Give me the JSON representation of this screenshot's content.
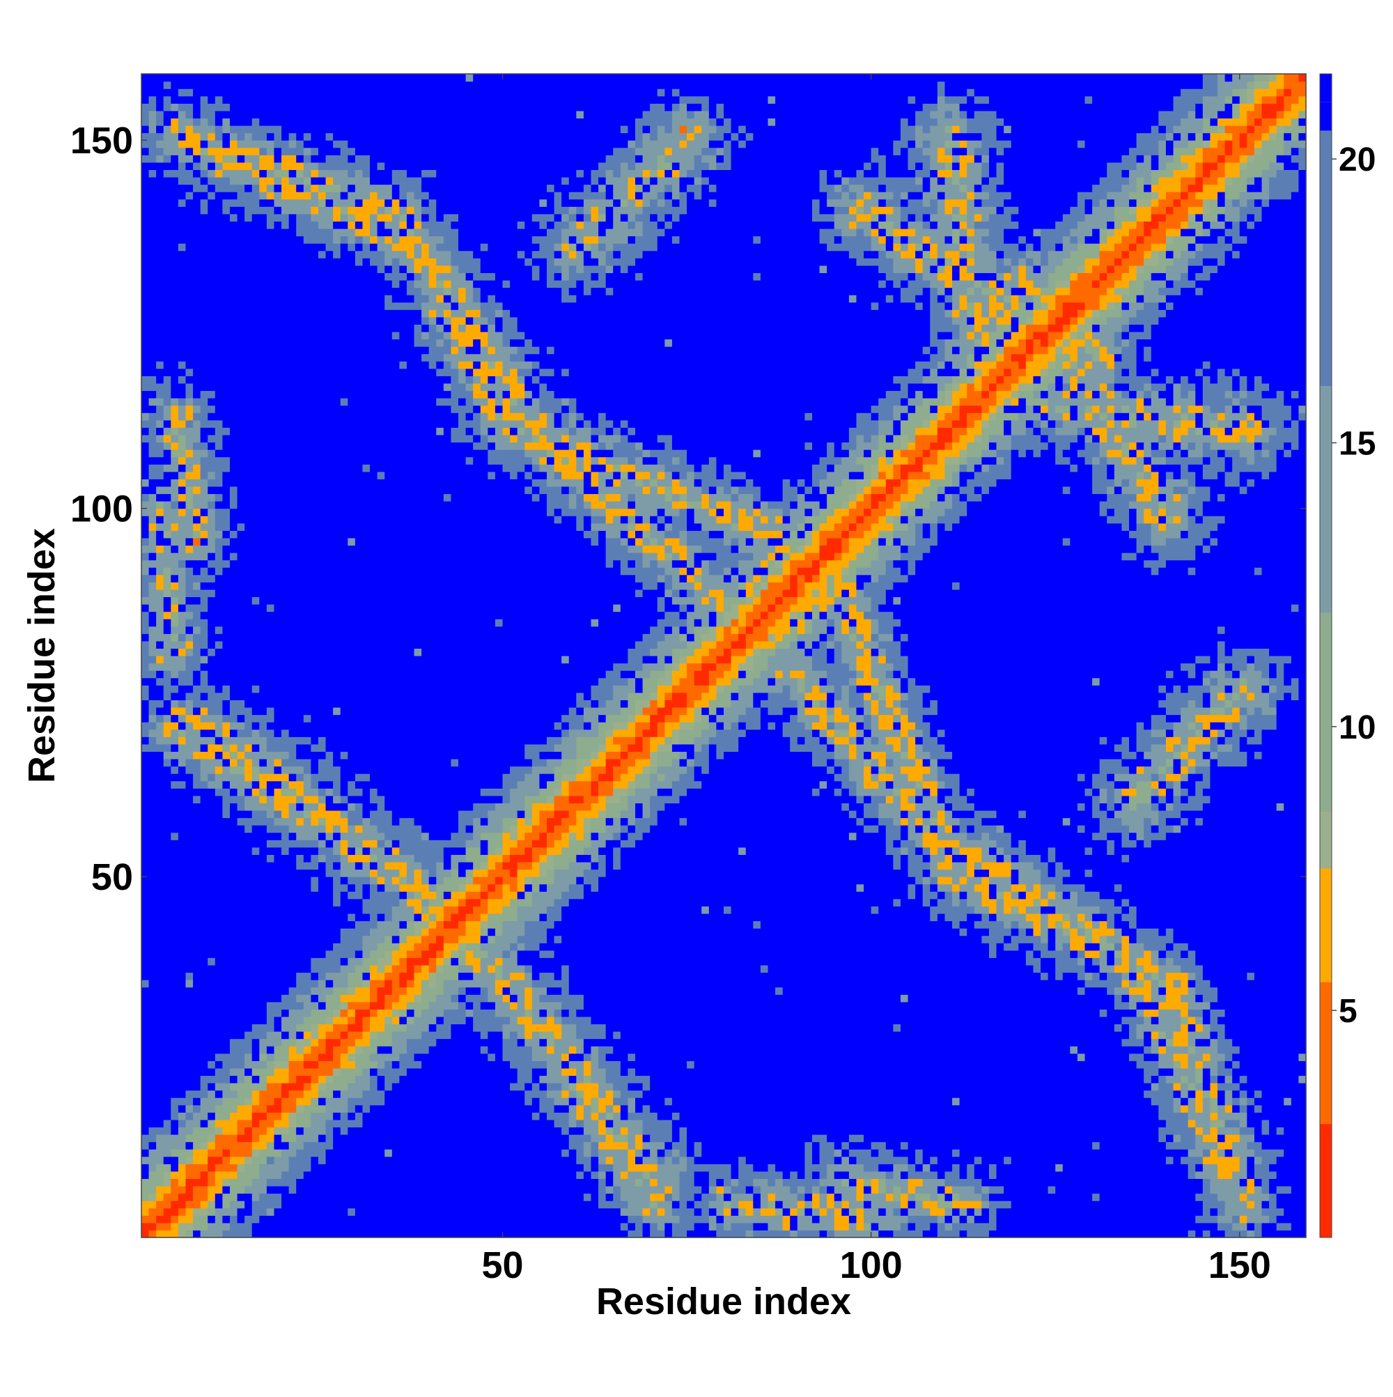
{
  "chart_data": {
    "type": "heatmap",
    "title": "",
    "xlabel": "Residue index",
    "ylabel": "Residue index",
    "xlim": [
      1,
      159
    ],
    "ylim": [
      1,
      159
    ],
    "xticks": [
      50,
      100,
      150
    ],
    "yticks": [
      50,
      100,
      150
    ],
    "n_residues": 158,
    "colorbar": {
      "ticks": [
        5,
        10,
        15,
        20
      ],
      "range": [
        1,
        21.5
      ],
      "placement": "right",
      "colormap": [
        {
          "value": 1.0,
          "color": "#ff0000"
        },
        {
          "value": 3.0,
          "color": "#ff2a00"
        },
        {
          "value": 5.5,
          "color": "#ff6a00"
        },
        {
          "value": 7.5,
          "color": "#ffaa00"
        },
        {
          "value": 8.5,
          "color": "#9ab08c"
        },
        {
          "value": 12.0,
          "color": "#8eac8e"
        },
        {
          "value": 16.0,
          "color": "#7d9ca8"
        },
        {
          "value": 20.5,
          "color": "#5b7fb5"
        },
        {
          "value": 21.0,
          "color": "#0000ff"
        }
      ]
    },
    "contact_segments": [
      {
        "from": [
          15,
          13
        ],
        "to": [
          60,
          58
        ],
        "width": 4,
        "strength": 0.7
      },
      {
        "from": [
          100,
          98
        ],
        "to": [
          150,
          148
        ],
        "width": 4,
        "strength": 0.6
      },
      {
        "from": [
          8,
          70
        ],
        "to": [
          35,
          50
        ],
        "width": 5,
        "strength": 0.7
      },
      {
        "from": [
          35,
          50
        ],
        "to": [
          48,
          38
        ],
        "width": 4,
        "strength": 0.8
      },
      {
        "from": [
          48,
          38
        ],
        "to": [
          70,
          5
        ],
        "width": 4,
        "strength": 0.7
      },
      {
        "from": [
          5,
          150
        ],
        "to": [
          35,
          140
        ],
        "width": 4,
        "strength": 0.6
      },
      {
        "from": [
          35,
          140
        ],
        "to": [
          55,
          108
        ],
        "width": 4,
        "strength": 0.8
      },
      {
        "from": [
          55,
          108
        ],
        "to": [
          78,
          88
        ],
        "width": 4,
        "strength": 0.6
      },
      {
        "from": [
          95,
          88
        ],
        "to": [
          110,
          52
        ],
        "width": 4,
        "strength": 0.7
      },
      {
        "from": [
          110,
          50
        ],
        "to": [
          135,
          38
        ],
        "width": 4,
        "strength": 0.7
      },
      {
        "from": [
          135,
          38
        ],
        "to": [
          150,
          5
        ],
        "width": 4,
        "strength": 0.7
      },
      {
        "from": [
          98,
          140
        ],
        "to": [
          130,
          120
        ],
        "width": 5,
        "strength": 0.5
      },
      {
        "from": [
          115,
          115
        ],
        "to": [
          150,
          110
        ],
        "width": 5,
        "strength": 0.4
      },
      {
        "from": [
          88,
          95
        ],
        "to": [
          80,
          80
        ],
        "width": 5,
        "strength": 0.5
      },
      {
        "from": [
          5,
          112
        ],
        "to": [
          8,
          95
        ],
        "width": 4,
        "strength": 0.4
      },
      {
        "from": [
          80,
          5
        ],
        "to": [
          100,
          3
        ],
        "width": 4,
        "strength": 0.4
      },
      {
        "from": [
          135,
          60
        ],
        "to": [
          150,
          75
        ],
        "width": 5,
        "strength": 0.4
      }
    ]
  }
}
